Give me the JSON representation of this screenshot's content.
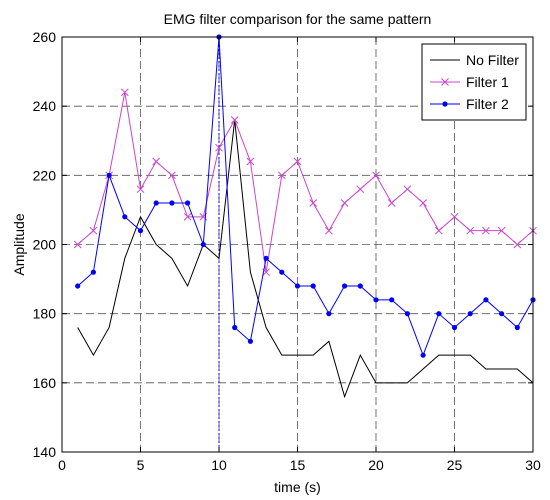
{
  "chart_data": {
    "type": "line",
    "title": "EMG filter comparison for the same pattern",
    "xlabel": "time (s)",
    "ylabel": "Amplitude",
    "xlim": [
      0,
      30
    ],
    "ylim": [
      140,
      260
    ],
    "xticks": [
      0,
      5,
      10,
      15,
      20,
      25,
      30
    ],
    "yticks": [
      140,
      160,
      180,
      200,
      220,
      240,
      260
    ],
    "grid": true,
    "legend_position": "top-right",
    "x": [
      1,
      2,
      3,
      4,
      5,
      6,
      7,
      8,
      9,
      10,
      11,
      12,
      13,
      14,
      15,
      16,
      17,
      18,
      19,
      20,
      21,
      22,
      23,
      24,
      25,
      26,
      27,
      28,
      29,
      30
    ],
    "series": [
      {
        "name": "No Filter",
        "color": "#000000",
        "marker": "none",
        "values": [
          176,
          168,
          176,
          196,
          208,
          200,
          196,
          188,
          200,
          196,
          236,
          192,
          176,
          168,
          168,
          168,
          172,
          156,
          168,
          160,
          160,
          160,
          164,
          168,
          168,
          168,
          164,
          164,
          164,
          160
        ]
      },
      {
        "name": "Filter 1",
        "color": "#cc44cc",
        "marker": "x",
        "values": [
          200,
          204,
          220,
          244,
          216,
          224,
          220,
          208,
          208,
          228,
          236,
          224,
          192,
          220,
          224,
          212,
          204,
          212,
          216,
          220,
          212,
          216,
          212,
          204,
          208,
          204,
          204,
          204,
          200,
          204
        ]
      },
      {
        "name": "Filter 2",
        "color": "#0000ff",
        "marker": "dot",
        "values": [
          188,
          192,
          220,
          208,
          204,
          212,
          212,
          212,
          200,
          260,
          176,
          172,
          196,
          192,
          188,
          188,
          180,
          188,
          188,
          184,
          184,
          180,
          168,
          180,
          176,
          180,
          184,
          180,
          176,
          184
        ]
      }
    ],
    "annotations": [
      {
        "type": "vline",
        "x": 10,
        "color": "#0000ff",
        "style": "dashed"
      }
    ]
  }
}
